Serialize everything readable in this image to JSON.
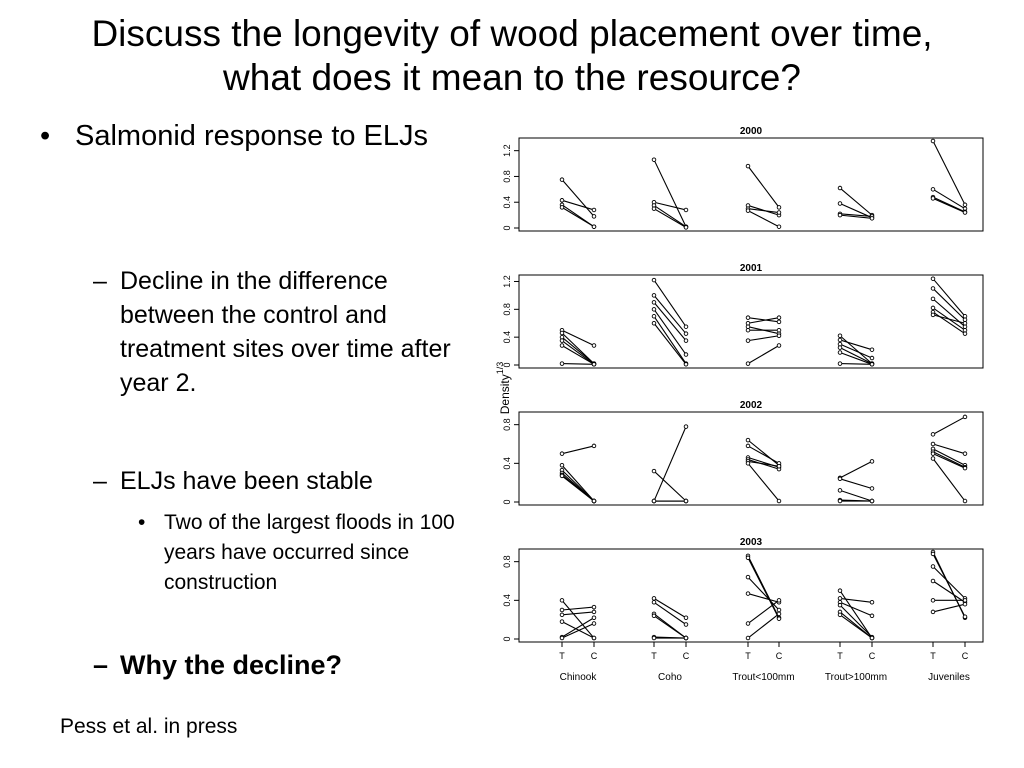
{
  "slide": {
    "title_line1": "Discuss the longevity of wood placement over time,",
    "title_line2": "what does it mean to the resource?",
    "bullet1_marker": "•",
    "bullet1": "Salmonid response to ELJs",
    "dash": "–",
    "sub1": "Decline in the difference between the control and treatment sites over time after year 2.",
    "sub2": "ELJs have been stable",
    "subsub_marker": "•",
    "subsub1": "Two of the largest floods in 100 years have occurred since construction",
    "sub3": "Why the decline?",
    "citation": "Pess et al. in press"
  },
  "chart_data": {
    "type": "line",
    "ylabel": "Density",
    "ylabel_exponent": "1/3",
    "x_tick_labels": [
      "T",
      "C"
    ],
    "groups": [
      "Chinook",
      "Coho",
      "Trout<100mm",
      "Trout>100mm",
      "Juveniles"
    ],
    "panels": [
      {
        "title": "2000",
        "ylim": [
          0,
          1.35
        ],
        "yticks": [
          0,
          0.4,
          0.8,
          1.2
        ],
        "ytick_labels": [
          "0",
          "0.4",
          "0.8",
          "1.2"
        ],
        "lines": [
          [
            [
              0.75,
              0.18
            ],
            [
              0.43,
              0.28
            ],
            [
              0.36,
              0.02
            ],
            [
              0.32,
              0.02
            ]
          ],
          [
            [
              1.06,
              0.02
            ],
            [
              0.4,
              0.28
            ],
            [
              0.35,
              0.02
            ],
            [
              0.3,
              0.01
            ]
          ],
          [
            [
              0.96,
              0.32
            ],
            [
              0.35,
              0.2
            ],
            [
              0.3,
              0.24
            ],
            [
              0.27,
              0.02
            ]
          ],
          [
            [
              0.62,
              0.2
            ],
            [
              0.38,
              0.16
            ],
            [
              0.22,
              0.18
            ],
            [
              0.2,
              0.15
            ]
          ],
          [
            [
              1.35,
              0.36
            ],
            [
              0.6,
              0.3
            ],
            [
              0.48,
              0.25
            ],
            [
              0.46,
              0.24
            ]
          ]
        ]
      },
      {
        "title": "2001",
        "ylim": [
          0,
          1.25
        ],
        "yticks": [
          0,
          0.4,
          0.8,
          1.2
        ],
        "ytick_labels": [
          "0",
          "0.4",
          "0.8",
          "1.2"
        ],
        "lines": [
          [
            [
              0.5,
              0.28
            ],
            [
              0.46,
              0.02
            ],
            [
              0.4,
              0.02
            ],
            [
              0.35,
              0.01
            ],
            [
              0.28,
              0.01
            ],
            [
              0.02,
              0.01
            ]
          ],
          [
            [
              1.22,
              0.55
            ],
            [
              1.0,
              0.45
            ],
            [
              0.9,
              0.35
            ],
            [
              0.8,
              0.15
            ],
            [
              0.7,
              0.02
            ],
            [
              0.6,
              0.01
            ]
          ],
          [
            [
              0.68,
              0.62
            ],
            [
              0.6,
              0.68
            ],
            [
              0.55,
              0.45
            ],
            [
              0.5,
              0.5
            ],
            [
              0.35,
              0.42
            ],
            [
              0.02,
              0.28
            ]
          ],
          [
            [
              0.42,
              0.02
            ],
            [
              0.36,
              0.22
            ],
            [
              0.3,
              0.1
            ],
            [
              0.25,
              0.02
            ],
            [
              0.18,
              0.01
            ],
            [
              0.02,
              0.01
            ]
          ],
          [
            [
              1.24,
              0.7
            ],
            [
              1.1,
              0.65
            ],
            [
              0.95,
              0.55
            ],
            [
              0.82,
              0.5
            ],
            [
              0.76,
              0.45
            ],
            [
              0.72,
              0.6
            ]
          ]
        ]
      },
      {
        "title": "2002",
        "ylim": [
          0,
          0.9
        ],
        "yticks": [
          0,
          0.4,
          0.8
        ],
        "ytick_labels": [
          "0",
          "0.4",
          "0.8"
        ],
        "lines": [
          [
            [
              0.5,
              0.58
            ],
            [
              0.38,
              0.01
            ],
            [
              0.33,
              0.01
            ],
            [
              0.3,
              0.01
            ],
            [
              0.28,
              0.01
            ],
            [
              0.27,
              0.01
            ]
          ],
          [
            [
              0.32,
              0.01
            ],
            [
              0.01,
              0.78
            ],
            [
              0.01,
              0.01
            ],
            [
              0.01,
              0.01
            ]
          ],
          [
            [
              0.64,
              0.38
            ],
            [
              0.58,
              0.4
            ],
            [
              0.46,
              0.36
            ],
            [
              0.44,
              0.34
            ],
            [
              0.42,
              0.37
            ],
            [
              0.4,
              0.01
            ]
          ],
          [
            [
              0.25,
              0.42
            ],
            [
              0.24,
              0.14
            ],
            [
              0.12,
              0.01
            ],
            [
              0.02,
              0.01
            ],
            [
              0.01,
              0.01
            ]
          ],
          [
            [
              0.7,
              0.88
            ],
            [
              0.6,
              0.5
            ],
            [
              0.55,
              0.38
            ],
            [
              0.52,
              0.36
            ],
            [
              0.5,
              0.35
            ],
            [
              0.45,
              0.01
            ]
          ]
        ]
      },
      {
        "title": "2003",
        "ylim": [
          0,
          0.9
        ],
        "yticks": [
          0,
          0.4,
          0.8
        ],
        "ytick_labels": [
          "0",
          "0.4",
          "0.8"
        ],
        "lines": [
          [
            [
              0.4,
              0.01
            ],
            [
              0.3,
              0.33
            ],
            [
              0.25,
              0.28
            ],
            [
              0.18,
              0.01
            ],
            [
              0.02,
              0.22
            ],
            [
              0.01,
              0.16
            ]
          ],
          [
            [
              0.42,
              0.22
            ],
            [
              0.38,
              0.15
            ],
            [
              0.26,
              0.01
            ],
            [
              0.24,
              0.01
            ],
            [
              0.02,
              0.01
            ],
            [
              0.01,
              0.01
            ]
          ],
          [
            [
              0.86,
              0.22
            ],
            [
              0.84,
              0.21
            ],
            [
              0.64,
              0.3
            ],
            [
              0.47,
              0.38
            ],
            [
              0.16,
              0.4
            ],
            [
              0.01,
              0.26
            ]
          ],
          [
            [
              0.5,
              0.01
            ],
            [
              0.42,
              0.38
            ],
            [
              0.38,
              0.24
            ],
            [
              0.35,
              0.02
            ],
            [
              0.28,
              0.01
            ],
            [
              0.25,
              0.01
            ]
          ],
          [
            [
              0.9,
              0.22
            ],
            [
              0.88,
              0.23
            ],
            [
              0.75,
              0.42
            ],
            [
              0.6,
              0.38
            ],
            [
              0.4,
              0.4
            ],
            [
              0.28,
              0.36
            ]
          ]
        ]
      }
    ]
  }
}
